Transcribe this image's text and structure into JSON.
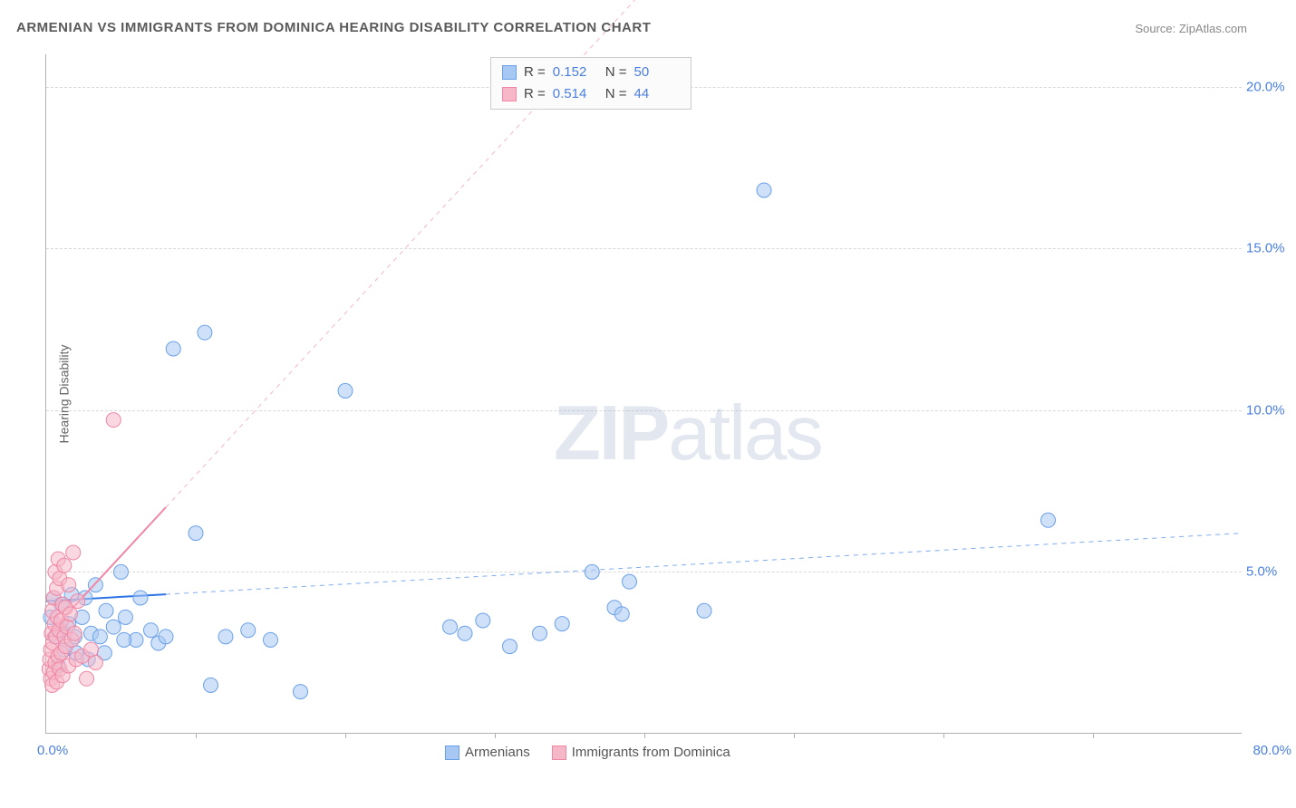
{
  "title": "ARMENIAN VS IMMIGRANTS FROM DOMINICA HEARING DISABILITY CORRELATION CHART",
  "source_label": "Source: ZipAtlas.com",
  "y_axis_title": "Hearing Disability",
  "watermark": {
    "bold": "ZIP",
    "rest": "atlas"
  },
  "chart": {
    "type": "scatter",
    "x_min": 0.0,
    "x_max": 80.0,
    "y_min": 0.0,
    "y_max": 21.0,
    "x_min_label": "0.0%",
    "x_max_label": "80.0%",
    "y_ticks": [
      5.0,
      10.0,
      15.0,
      20.0
    ],
    "y_tick_labels": [
      "5.0%",
      "10.0%",
      "15.0%",
      "20.0%"
    ],
    "x_tick_positions": [
      10,
      20,
      30,
      40,
      50,
      60,
      70
    ],
    "background_color": "#ffffff",
    "grid_color": "#d8d8d8",
    "axis_color": "#b0b0b0",
    "tick_label_color": "#4a7fe0",
    "marker_radius": 8,
    "marker_opacity": 0.55,
    "trend_solid_extent": 0.1,
    "trend_line_width": 2
  },
  "series": [
    {
      "id": "armenians",
      "label": "Armenians",
      "color_fill": "#a7c8f2",
      "color_stroke": "#6aa0e8",
      "trend_color": "#2e74e6",
      "R": "0.152",
      "N": "50",
      "trend": {
        "x1": 0,
        "y1": 4.1,
        "x2": 80,
        "y2": 6.2
      },
      "points": [
        [
          0.3,
          3.6
        ],
        [
          0.5,
          4.2
        ],
        [
          0.6,
          3.0
        ],
        [
          0.8,
          2.1
        ],
        [
          1.0,
          4.0
        ],
        [
          1.0,
          3.2
        ],
        [
          1.2,
          2.6
        ],
        [
          1.5,
          3.4
        ],
        [
          1.7,
          4.3
        ],
        [
          1.9,
          3.0
        ],
        [
          2.0,
          2.5
        ],
        [
          2.4,
          3.6
        ],
        [
          2.6,
          4.2
        ],
        [
          2.8,
          2.3
        ],
        [
          3.0,
          3.1
        ],
        [
          3.3,
          4.6
        ],
        [
          3.6,
          3.0
        ],
        [
          3.9,
          2.5
        ],
        [
          4.0,
          3.8
        ],
        [
          5.3,
          3.6
        ],
        [
          5.0,
          5.0
        ],
        [
          6.0,
          2.9
        ],
        [
          6.3,
          4.2
        ],
        [
          7.0,
          3.2
        ],
        [
          7.5,
          2.8
        ],
        [
          8.0,
          3.0
        ],
        [
          8.5,
          11.9
        ],
        [
          10.6,
          12.4
        ],
        [
          10.0,
          6.2
        ],
        [
          11.0,
          1.5
        ],
        [
          12.0,
          3.0
        ],
        [
          13.5,
          3.2
        ],
        [
          15.0,
          2.9
        ],
        [
          17.0,
          1.3
        ],
        [
          20.0,
          10.6
        ],
        [
          27.0,
          3.3
        ],
        [
          28.0,
          3.1
        ],
        [
          29.2,
          3.5
        ],
        [
          31.0,
          2.7
        ],
        [
          33.0,
          3.1
        ],
        [
          34.5,
          3.4
        ],
        [
          36.5,
          5.0
        ],
        [
          38.0,
          3.9
        ],
        [
          38.5,
          3.7
        ],
        [
          39.0,
          4.7
        ],
        [
          44.0,
          3.8
        ],
        [
          48.0,
          16.8
        ],
        [
          67.0,
          6.6
        ],
        [
          5.2,
          2.9
        ],
        [
          4.5,
          3.3
        ]
      ]
    },
    {
      "id": "dominica",
      "label": "Immigrants from Dominica",
      "color_fill": "#f6b8c9",
      "color_stroke": "#ef87a5",
      "trend_color": "#ef87a5",
      "R": "0.514",
      "N": "44",
      "trend": {
        "x1": 0,
        "y1": 3.0,
        "x2": 42,
        "y2": 24.0
      },
      "points": [
        [
          0.2,
          2.0
        ],
        [
          0.25,
          2.3
        ],
        [
          0.3,
          1.7
        ],
        [
          0.3,
          2.6
        ],
        [
          0.35,
          3.1
        ],
        [
          0.4,
          1.5
        ],
        [
          0.4,
          3.8
        ],
        [
          0.45,
          2.8
        ],
        [
          0.5,
          1.9
        ],
        [
          0.5,
          4.2
        ],
        [
          0.55,
          3.4
        ],
        [
          0.6,
          2.2
        ],
        [
          0.6,
          5.0
        ],
        [
          0.65,
          3.0
        ],
        [
          0.7,
          1.6
        ],
        [
          0.7,
          4.5
        ],
        [
          0.75,
          3.6
        ],
        [
          0.8,
          2.4
        ],
        [
          0.8,
          5.4
        ],
        [
          0.85,
          3.2
        ],
        [
          0.9,
          2.0
        ],
        [
          0.9,
          4.8
        ],
        [
          1.0,
          3.5
        ],
        [
          1.0,
          2.5
        ],
        [
          1.1,
          1.8
        ],
        [
          1.1,
          4.0
        ],
        [
          1.2,
          3.0
        ],
        [
          1.2,
          5.2
        ],
        [
          1.3,
          2.7
        ],
        [
          1.3,
          3.9
        ],
        [
          1.4,
          3.3
        ],
        [
          1.5,
          2.1
        ],
        [
          1.5,
          4.6
        ],
        [
          1.6,
          3.7
        ],
        [
          1.7,
          2.9
        ],
        [
          1.8,
          5.6
        ],
        [
          1.9,
          3.1
        ],
        [
          2.0,
          2.3
        ],
        [
          2.1,
          4.1
        ],
        [
          2.4,
          2.4
        ],
        [
          2.7,
          1.7
        ],
        [
          3.0,
          2.6
        ],
        [
          3.3,
          2.2
        ],
        [
          4.5,
          9.7
        ]
      ]
    }
  ],
  "stats_box": {
    "rows": [
      {
        "series": 0,
        "R_label": "R =",
        "N_label": "N ="
      },
      {
        "series": 1,
        "R_label": "R =",
        "N_label": "N ="
      }
    ]
  }
}
